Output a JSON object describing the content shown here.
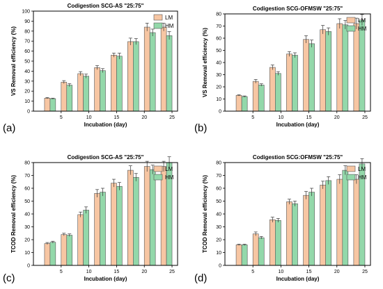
{
  "chart_data": [
    {
      "type": "bar",
      "panel_label": "(a)",
      "title": "Codigestion SCG-AS \"25:75\"",
      "xlabel": "Incubation (day)",
      "ylabel": "VS Removal efficiency (%)",
      "x_ticks": [
        "5",
        "10",
        "15",
        "20",
        "25"
      ],
      "y_ticks": [
        "0",
        "10",
        "20",
        "30",
        "40",
        "50",
        "60",
        "70",
        "80",
        "90",
        "100"
      ],
      "ylim": [
        0,
        100
      ],
      "xlim": [
        0,
        26
      ],
      "legend_position": "top-right",
      "series": [
        {
          "name": "LM",
          "color": "#f7c6a3",
          "x": [
            3,
            6,
            9,
            12,
            15,
            18,
            21,
            24
          ],
          "values": [
            13,
            29,
            37.5,
            43.5,
            56,
            69.5,
            84,
            84
          ],
          "errors": [
            0.6,
            1.5,
            2,
            2,
            2,
            3.5,
            4,
            4
          ]
        },
        {
          "name": "HM",
          "color": "#93d8aa",
          "x": [
            3,
            6,
            9,
            12,
            15,
            18,
            21,
            24
          ],
          "values": [
            12.5,
            26,
            35,
            40.5,
            55,
            69.5,
            78.5,
            75.5
          ],
          "errors": [
            0.5,
            1.5,
            2,
            2,
            3,
            3,
            3.5,
            4
          ]
        }
      ]
    },
    {
      "type": "bar",
      "panel_label": "(b)",
      "title": "Codigestion SCG-OFMSW \"25:75\"",
      "xlabel": "Incubation (day)",
      "ylabel": "VS Removal efficiency (%)",
      "x_ticks": [
        "5",
        "10",
        "15",
        "20",
        "25"
      ],
      "y_ticks": [
        "0",
        "10",
        "20",
        "30",
        "40",
        "50",
        "60",
        "70",
        "80"
      ],
      "ylim": [
        0,
        80
      ],
      "xlim": [
        0,
        26
      ],
      "legend_position": "top-right",
      "series": [
        {
          "name": "LM",
          "color": "#f7c6a3",
          "x": [
            3,
            6,
            9,
            12,
            15,
            18,
            21,
            24
          ],
          "values": [
            13,
            24.5,
            36,
            47,
            59,
            67,
            72,
            72
          ],
          "errors": [
            0.5,
            1.5,
            2,
            2,
            3,
            3.5,
            4,
            4.5
          ]
        },
        {
          "name": "HM",
          "color": "#93d8aa",
          "x": [
            3,
            6,
            9,
            12,
            15,
            18,
            21,
            24
          ],
          "values": [
            12,
            21.5,
            31,
            46,
            55.5,
            65.5,
            71,
            75
          ],
          "errors": [
            0.5,
            1,
            1.5,
            2,
            3,
            3,
            3.5,
            4.5
          ]
        }
      ]
    },
    {
      "type": "bar",
      "panel_label": "(c)",
      "title": "Codigestion SCG-AS \"25:75\"",
      "xlabel": "Incubation (day)",
      "ylabel": "TCOD Removal efficiency (%)",
      "x_ticks": [
        "5",
        "10",
        "15",
        "20",
        "25"
      ],
      "y_ticks": [
        "0",
        "10",
        "20",
        "30",
        "40",
        "50",
        "60",
        "70",
        "80"
      ],
      "ylim": [
        0,
        80
      ],
      "xlim": [
        0,
        26
      ],
      "legend_position": "top-right",
      "series": [
        {
          "name": "LM",
          "color": "#f7c6a3",
          "x": [
            3,
            6,
            9,
            12,
            15,
            18,
            21,
            24
          ],
          "values": [
            17,
            24,
            39.5,
            56,
            64,
            74,
            77,
            77
          ],
          "errors": [
            0.8,
            1,
            2,
            3,
            3,
            3.5,
            4,
            4
          ]
        },
        {
          "name": "HM",
          "color": "#93d8aa",
          "x": [
            3,
            6,
            9,
            12,
            15,
            18,
            21,
            24
          ],
          "values": [
            18,
            23.5,
            43,
            57,
            61.5,
            68.5,
            74.5,
            80
          ],
          "errors": [
            0.8,
            1,
            2.5,
            3,
            3,
            3,
            3.5,
            4.5
          ]
        }
      ]
    },
    {
      "type": "bar",
      "panel_label": "(d)",
      "title": "Codigestion SCG:OFMSW \"25:75\"",
      "xlabel": "Incubation (day)",
      "ylabel": "TCOD Removal efficiency (%)",
      "x_ticks": [
        "5",
        "10",
        "15",
        "20",
        "25"
      ],
      "y_ticks": [
        "0",
        "10",
        "20",
        "30",
        "40",
        "50",
        "60",
        "70",
        "80"
      ],
      "ylim": [
        0,
        80
      ],
      "xlim": [
        0,
        26
      ],
      "legend_position": "top-right",
      "series": [
        {
          "name": "LM",
          "color": "#f7c6a3",
          "x": [
            3,
            6,
            9,
            12,
            15,
            18,
            21,
            24
          ],
          "values": [
            16,
            24.5,
            35.5,
            49.5,
            54.5,
            62.5,
            67,
            67
          ],
          "errors": [
            0.5,
            1.5,
            2,
            2,
            3,
            3,
            3.5,
            3.5
          ]
        },
        {
          "name": "HM",
          "color": "#93d8aa",
          "x": [
            3,
            6,
            9,
            12,
            15,
            18,
            21,
            24
          ],
          "values": [
            16,
            21.5,
            35,
            48,
            57,
            66,
            74,
            79
          ],
          "errors": [
            0.5,
            1,
            1.5,
            2,
            3,
            3,
            3.5,
            4
          ]
        }
      ]
    }
  ]
}
